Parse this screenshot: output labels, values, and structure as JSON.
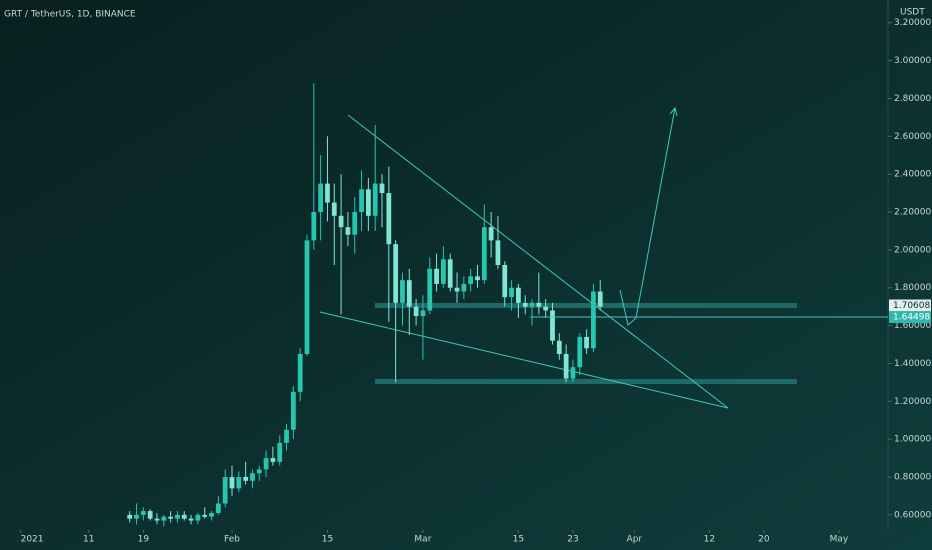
{
  "chart_data": {
    "type": "candlestick",
    "title": "GRT / TetherUS, 1D, BINANCE",
    "y_axis_label": "USDT",
    "x": [
      16,
      17,
      18,
      19,
      20,
      21,
      22,
      23,
      24,
      25,
      26,
      27,
      28,
      29,
      30,
      31,
      32,
      33,
      34,
      35,
      36,
      37,
      38,
      39,
      40,
      41,
      42,
      43,
      44,
      45,
      46,
      47,
      48,
      49,
      50,
      51,
      52,
      53,
      54,
      55,
      56,
      57,
      58,
      59,
      60,
      61,
      62,
      63,
      64,
      65,
      66,
      67,
      68,
      69,
      70,
      71,
      72,
      73,
      74,
      75,
      76,
      77,
      78,
      79,
      80,
      81,
      82,
      83,
      84,
      85
    ],
    "open": [
      0.6,
      0.58,
      0.6,
      0.62,
      0.58,
      0.57,
      0.59,
      0.58,
      0.6,
      0.58,
      0.57,
      0.6,
      0.59,
      0.61,
      0.66,
      0.8,
      0.74,
      0.8,
      0.78,
      0.82,
      0.84,
      0.9,
      0.88,
      0.98,
      1.05,
      1.25,
      1.45,
      2.05,
      2.2,
      2.35,
      2.25,
      2.18,
      2.12,
      2.08,
      2.2,
      2.32,
      2.18,
      2.35,
      2.3,
      2.03,
      1.72,
      1.84,
      1.7,
      1.65,
      1.68,
      1.9,
      1.82,
      1.95,
      1.8,
      1.78,
      1.82,
      1.86,
      1.84,
      2.12,
      2.05,
      1.92,
      1.75,
      1.8,
      1.72,
      1.7,
      1.72,
      1.7,
      1.68,
      1.52,
      1.45,
      1.32,
      1.38,
      1.54,
      1.48,
      1.78
    ],
    "high": [
      0.62,
      0.66,
      0.64,
      0.63,
      0.61,
      0.6,
      0.62,
      0.62,
      0.62,
      0.6,
      0.61,
      0.64,
      0.62,
      0.7,
      0.84,
      0.86,
      0.83,
      0.88,
      0.84,
      0.86,
      0.94,
      0.96,
      1.02,
      1.08,
      1.28,
      1.48,
      2.08,
      2.88,
      2.5,
      2.6,
      2.35,
      2.4,
      2.2,
      2.28,
      2.42,
      2.38,
      2.66,
      2.4,
      2.44,
      2.05,
      1.88,
      1.9,
      1.74,
      1.76,
      1.96,
      1.98,
      2.02,
      1.98,
      1.88,
      1.86,
      1.9,
      1.92,
      2.24,
      2.2,
      2.18,
      1.94,
      1.84,
      1.82,
      1.76,
      1.74,
      1.88,
      1.74,
      1.72,
      1.56,
      1.5,
      1.42,
      1.56,
      1.58,
      1.82,
      1.84
    ],
    "low": [
      0.56,
      0.55,
      0.57,
      0.57,
      0.55,
      0.54,
      0.56,
      0.56,
      0.57,
      0.55,
      0.55,
      0.58,
      0.57,
      0.6,
      0.64,
      0.7,
      0.72,
      0.76,
      0.74,
      0.78,
      0.8,
      0.86,
      0.86,
      0.94,
      1.0,
      1.2,
      1.44,
      2.0,
      2.05,
      2.15,
      1.92,
      1.66,
      2.02,
      1.98,
      2.1,
      2.1,
      2.1,
      2.12,
      1.62,
      1.3,
      1.6,
      1.55,
      1.6,
      1.42,
      1.66,
      1.78,
      1.8,
      1.78,
      1.72,
      1.74,
      1.78,
      1.8,
      1.82,
      1.96,
      1.9,
      1.7,
      1.68,
      1.64,
      1.66,
      1.6,
      1.66,
      1.64,
      1.5,
      1.42,
      1.3,
      1.3,
      1.34,
      1.45,
      1.46,
      1.68
    ],
    "close": [
      0.58,
      0.6,
      0.62,
      0.58,
      0.57,
      0.59,
      0.58,
      0.6,
      0.58,
      0.57,
      0.6,
      0.59,
      0.61,
      0.66,
      0.8,
      0.74,
      0.8,
      0.78,
      0.82,
      0.84,
      0.9,
      0.88,
      0.98,
      1.05,
      1.25,
      1.45,
      2.05,
      2.2,
      2.35,
      2.25,
      2.18,
      2.12,
      2.08,
      2.2,
      2.32,
      2.18,
      2.35,
      2.3,
      2.03,
      1.72,
      1.84,
      1.7,
      1.65,
      1.68,
      1.9,
      1.82,
      1.95,
      1.8,
      1.78,
      1.82,
      1.86,
      1.84,
      2.12,
      2.05,
      1.92,
      1.75,
      1.8,
      1.72,
      1.7,
      1.72,
      1.7,
      1.68,
      1.52,
      1.45,
      1.32,
      1.38,
      1.54,
      1.48,
      1.78,
      1.7
    ],
    "up_color": "#26c6b0",
    "down_color": "#7fe6d6",
    "xlim": [
      -3.02,
      127.2
    ],
    "xticks": [
      {
        "value": 0,
        "label": "2021"
      },
      {
        "value": 10,
        "label": "11"
      },
      {
        "value": 18,
        "label": "19"
      },
      {
        "value": 31,
        "label": "Feb"
      },
      {
        "value": 45,
        "label": "15"
      },
      {
        "value": 59,
        "label": "Mar"
      },
      {
        "value": 73,
        "label": "15"
      },
      {
        "value": 81,
        "label": "23"
      },
      {
        "value": 90,
        "label": "Apr"
      },
      {
        "value": 101,
        "label": "12"
      },
      {
        "value": 109,
        "label": "20"
      },
      {
        "value": 120,
        "label": "May"
      }
    ],
    "ylim": [
      0.52,
      3.32
    ],
    "yticks": [
      {
        "value": 0.6,
        "label": "0.60000"
      },
      {
        "value": 0.8,
        "label": "0.80000"
      },
      {
        "value": 1.0,
        "label": "1.00000"
      },
      {
        "value": 1.2,
        "label": "1.20000"
      },
      {
        "value": 1.4,
        "label": "1.40000"
      },
      {
        "value": 1.6,
        "label": "1.60000"
      },
      {
        "value": 1.8,
        "label": "1.80000"
      },
      {
        "value": 2.0,
        "label": "2.00000"
      },
      {
        "value": 2.2,
        "label": "2.20000"
      },
      {
        "value": 2.4,
        "label": "2.40000"
      },
      {
        "value": 2.6,
        "label": "2.60000"
      },
      {
        "value": 2.8,
        "label": "2.80000"
      },
      {
        "value": 3.0,
        "label": "3.00000"
      },
      {
        "value": 3.2,
        "label": "3.20000"
      }
    ],
    "price_levels": [
      1.70608,
      1.64498
    ]
  }
}
